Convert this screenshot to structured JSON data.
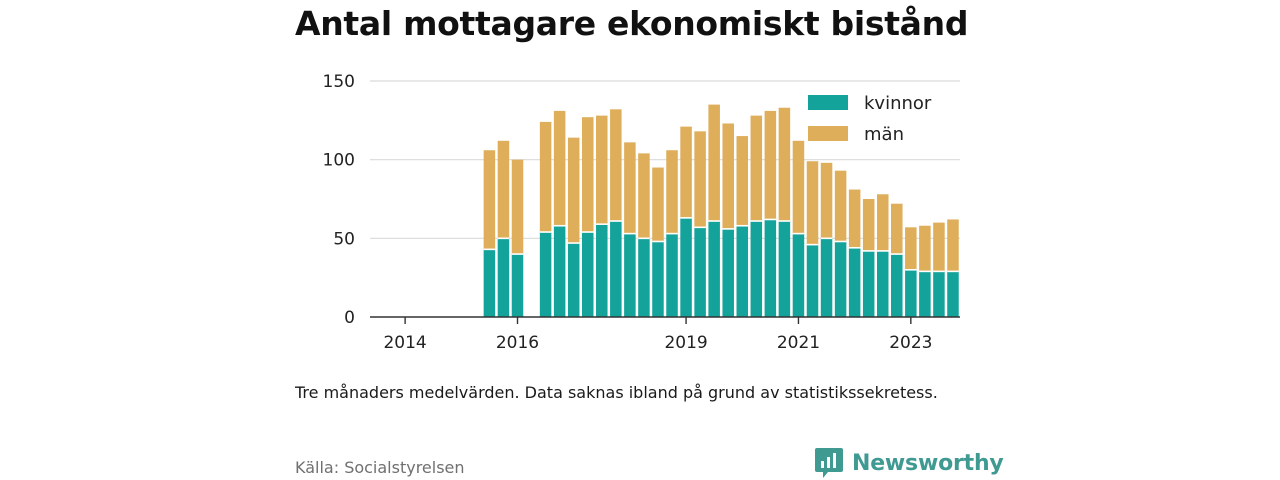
{
  "chart_data": {
    "type": "bar",
    "stacked": true,
    "title": "Antal mottagare ekonomiskt bistånd",
    "xlabel": "",
    "ylabel": "",
    "ylim": [
      0,
      150
    ],
    "yticks": [
      0,
      50,
      100,
      150
    ],
    "xticks": [
      "2014",
      "2016",
      "2019",
      "2021",
      "2023"
    ],
    "grid": true,
    "legend_position": "top-right",
    "series": [
      {
        "name": "kvinnor",
        "color": "#14a39a",
        "values": [
          null,
          null,
          null,
          null,
          null,
          null,
          null,
          null,
          43,
          50,
          40,
          null,
          54,
          58,
          47,
          54,
          59,
          61,
          53,
          50,
          48,
          53,
          63,
          57,
          61,
          56,
          58,
          61,
          62,
          61,
          53,
          46,
          50,
          48,
          44,
          42,
          42,
          40,
          30,
          29,
          29,
          29
        ]
      },
      {
        "name": "män",
        "color": "#deae5a",
        "values": [
          null,
          null,
          null,
          null,
          null,
          null,
          null,
          null,
          63,
          62,
          60,
          null,
          70,
          73,
          67,
          73,
          69,
          71,
          58,
          54,
          47,
          53,
          58,
          61,
          74,
          67,
          57,
          67,
          69,
          72,
          59,
          53,
          48,
          45,
          37,
          33,
          36,
          32,
          27,
          29,
          31,
          33
        ]
      }
    ],
    "note": "Tre månaders medelvärden. Data saknas ibland på grund av statistikssekretess.",
    "source": "Källa: Socialstyrelsen",
    "brand": "Newsworthy"
  }
}
